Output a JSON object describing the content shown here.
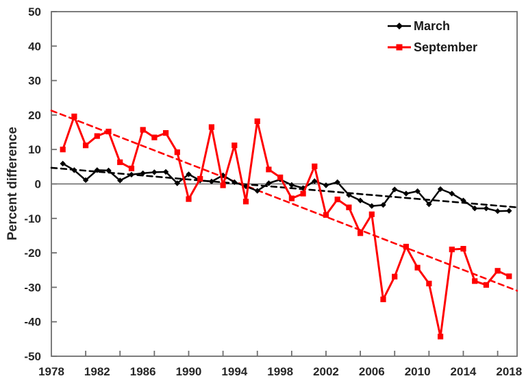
{
  "figure": {
    "ylabel": "Percent difference"
  },
  "chart_data": {
    "type": "line",
    "title": "",
    "xlabel": "",
    "ylabel": "Percent difference",
    "xlim": [
      1978,
      2018.7
    ],
    "ylim": [
      -50,
      50
    ],
    "grid": false,
    "legend_position": "top-right-inside",
    "x_tick_labels": [
      1978,
      1982,
      1986,
      1990,
      1994,
      1998,
      2002,
      2006,
      2010,
      2014,
      2018
    ],
    "x_tick_marks": [
      1981,
      1984,
      1987,
      1990,
      1993,
      1996,
      1999,
      2002,
      2005,
      2008,
      2011,
      2014,
      2017
    ],
    "y_ticks": [
      50,
      40,
      30,
      20,
      10,
      0,
      -10,
      -20,
      -30,
      -40,
      -50
    ],
    "zero_line": 0,
    "x": [
      1979,
      1980,
      1981,
      1982,
      1983,
      1984,
      1985,
      1986,
      1987,
      1988,
      1989,
      1990,
      1991,
      1992,
      1993,
      1994,
      1995,
      1996,
      1997,
      1998,
      1999,
      2000,
      2001,
      2002,
      2003,
      2004,
      2005,
      2006,
      2007,
      2008,
      2009,
      2010,
      2011,
      2012,
      2013,
      2014,
      2015,
      2016,
      2017,
      2018
    ],
    "series": [
      {
        "name": "March",
        "color": "#000000",
        "marker": "diamond",
        "style": "solid",
        "values": [
          5.9,
          4.0,
          1.1,
          4.0,
          3.9,
          1.0,
          2.7,
          3.1,
          3.4,
          3.5,
          0.2,
          2.8,
          1.0,
          0.7,
          2.5,
          0.5,
          -0.7,
          -2.0,
          0.2,
          1.3,
          -0.3,
          -1.2,
          0.8,
          -0.4,
          0.5,
          -3.2,
          -4.8,
          -6.4,
          -6.1,
          -1.6,
          -2.8,
          -2.1,
          -5.9,
          -1.5,
          -2.8,
          -4.8,
          -7.1,
          -7.1,
          -7.9,
          -7.8
        ]
      },
      {
        "name": "September",
        "color": "#fe0000",
        "marker": "square",
        "style": "solid",
        "values": [
          10.0,
          19.6,
          11.2,
          13.9,
          15.2,
          6.3,
          4.5,
          15.7,
          13.5,
          14.8,
          9.2,
          -4.4,
          1.5,
          16.5,
          -0.4,
          11.2,
          -5.1,
          18.2,
          4.2,
          1.9,
          -4.2,
          -2.8,
          5.1,
          -9.0,
          -4.5,
          -6.8,
          -14.3,
          -8.8,
          -33.5,
          -26.9,
          -18.2,
          -24.3,
          -28.9,
          -44.3,
          -19.0,
          -18.8,
          -28.2,
          -29.3,
          -25.2,
          -26.8
        ]
      },
      {
        "name": "March trend",
        "color": "#000000",
        "marker": "none",
        "style": "dashed",
        "x": [
          1978,
          2018.7
        ],
        "values": [
          4.7,
          -6.8
        ]
      },
      {
        "name": "September trend",
        "color": "#fe0000",
        "marker": "none",
        "style": "dashed",
        "x": [
          1978,
          2018.7
        ],
        "values": [
          21.3,
          -31.0
        ]
      }
    ],
    "colors": {
      "march": "#000000",
      "september": "#fe0000",
      "axis_border": "#6e6e6e",
      "zero_line": "#4d4d4d",
      "text": "#262626"
    }
  }
}
